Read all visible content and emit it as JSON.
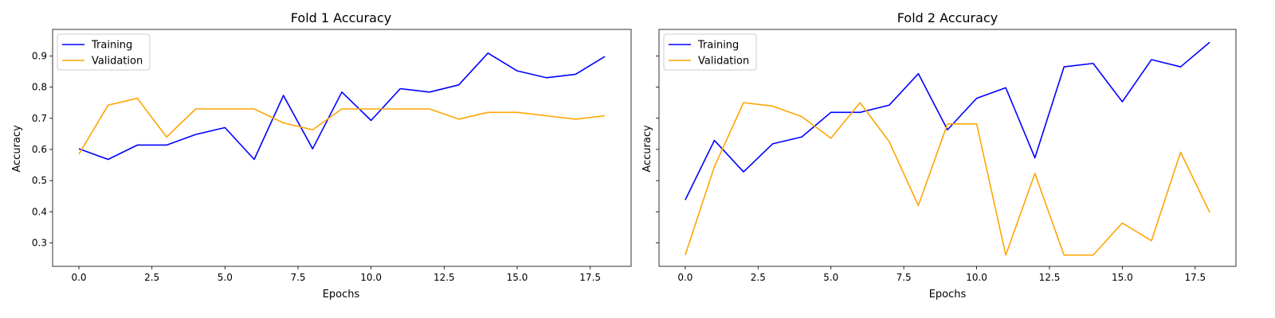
{
  "chart_data": [
    {
      "type": "line",
      "title": "Fold 1 Accuracy",
      "xlabel": "Epochs",
      "ylabel": "Accuracy",
      "xlim": [
        -0.9,
        18.9
      ],
      "ylim": [
        0.225,
        0.985
      ],
      "xticks": [
        0,
        2.5,
        5,
        7.5,
        10,
        12.5,
        15,
        17.5
      ],
      "xtick_labels": [
        "0.0",
        "2.5",
        "5.0",
        "7.5",
        "10.0",
        "12.5",
        "15.0",
        "17.5"
      ],
      "yticks": [
        0.3,
        0.4,
        0.5,
        0.6,
        0.7,
        0.8,
        0.9
      ],
      "ytick_labels": [
        "0.3",
        "0.4",
        "0.5",
        "0.6",
        "0.7",
        "0.8",
        "0.9"
      ],
      "grid": false,
      "legend_position": "top-left",
      "x": [
        0,
        1,
        2,
        3,
        4,
        5,
        6,
        7,
        8,
        9,
        10,
        11,
        12,
        13,
        14,
        15,
        16,
        17,
        18
      ],
      "series": [
        {
          "name": "Training",
          "color": "#0000ff",
          "values": [
            0.602,
            0.568,
            0.614,
            0.614,
            0.648,
            0.67,
            0.568,
            0.773,
            0.602,
            0.784,
            0.693,
            0.795,
            0.784,
            0.807,
            0.909,
            0.852,
            0.83,
            0.841,
            0.898
          ]
        },
        {
          "name": "Validation",
          "color": "#ffa500",
          "values": [
            0.585,
            0.742,
            0.764,
            0.64,
            0.73,
            0.73,
            0.73,
            0.685,
            0.663,
            0.73,
            0.73,
            0.73,
            0.73,
            0.697,
            0.719,
            0.719,
            0.708,
            0.697,
            0.708
          ]
        }
      ]
    },
    {
      "type": "line",
      "title": "Fold 2 Accuracy",
      "xlabel": "Epochs",
      "ylabel": "Accuracy",
      "xlim": [
        -0.9,
        18.9
      ],
      "ylim": [
        0.225,
        0.985
      ],
      "xticks": [
        0,
        2.5,
        5,
        7.5,
        10,
        12.5,
        15,
        17.5
      ],
      "xtick_labels": [
        "0.0",
        "2.5",
        "5.0",
        "7.5",
        "10.0",
        "12.5",
        "15.0",
        "17.5"
      ],
      "yticks": [
        0.3,
        0.4,
        0.5,
        0.6,
        0.7,
        0.8,
        0.9
      ],
      "ytick_labels": [],
      "grid": false,
      "legend_position": "top-left",
      "x": [
        0,
        1,
        2,
        3,
        4,
        5,
        6,
        7,
        8,
        9,
        10,
        11,
        12,
        13,
        14,
        15,
        16,
        17,
        18
      ],
      "series": [
        {
          "name": "Training",
          "color": "#0000ff",
          "values": [
            0.438,
            0.629,
            0.528,
            0.618,
            0.64,
            0.719,
            0.719,
            0.742,
            0.843,
            0.663,
            0.764,
            0.798,
            0.573,
            0.865,
            0.876,
            0.753,
            0.888,
            0.865,
            0.944
          ]
        },
        {
          "name": "Validation",
          "color": "#ffa500",
          "values": [
            0.261,
            0.545,
            0.75,
            0.739,
            0.705,
            0.636,
            0.75,
            0.625,
            0.42,
            0.682,
            0.682,
            0.261,
            0.523,
            0.261,
            0.261,
            0.364,
            0.307,
            0.591,
            0.398
          ]
        }
      ]
    }
  ]
}
